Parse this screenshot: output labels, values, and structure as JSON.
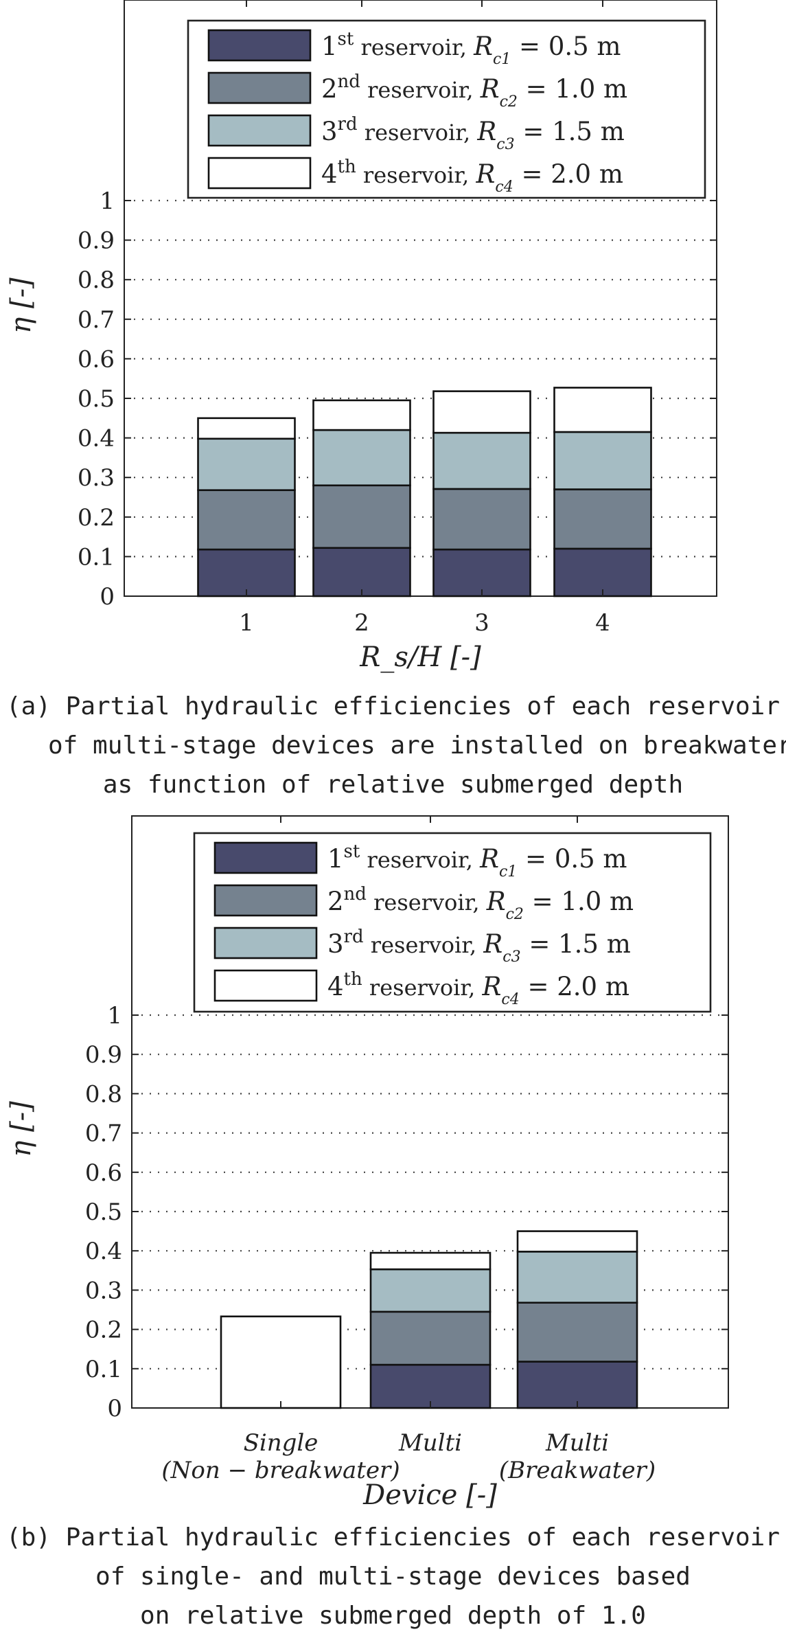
{
  "legend": [
    {
      "ordinal": "1",
      "sup": "st",
      "text": " reservoir, ",
      "sym": "R",
      "sub": "c1",
      "value": " = 0.5 m",
      "color": "#484a6c"
    },
    {
      "ordinal": "2",
      "sup": "nd",
      "text": " reservoir, ",
      "sym": "R",
      "sub": "c2",
      "value": " = 1.0 m",
      "color": "#75828f"
    },
    {
      "ordinal": "3",
      "sup": "rd",
      "text": " reservoir, ",
      "sym": "R",
      "sub": "c3",
      "value": " = 1.5 m",
      "color": "#a5bcc3"
    },
    {
      "ordinal": "4",
      "sup": "th",
      "text": " reservoir, ",
      "sym": "R",
      "sub": "c4",
      "value": " = 2.0 m",
      "color": "#ffffff"
    }
  ],
  "chart_data": [
    {
      "type": "bar",
      "stacked": true,
      "ylabel": "η [-]",
      "xlabel": "R_s/H [-]",
      "ylim": [
        0,
        1
      ],
      "yticks": [
        "0",
        "0.1",
        "0.2",
        "0.3",
        "0.4",
        "0.5",
        "0.6",
        "0.7",
        "0.8",
        "0.9",
        "1"
      ],
      "grid": true,
      "legend_position": "top",
      "categories": [
        "1",
        "2",
        "3",
        "4"
      ],
      "series": [
        {
          "name": "1st reservoir, Rc1 = 0.5 m",
          "values": [
            0.118,
            0.122,
            0.118,
            0.12
          ]
        },
        {
          "name": "2nd reservoir, Rc2 = 1.0 m",
          "values": [
            0.15,
            0.158,
            0.153,
            0.15
          ]
        },
        {
          "name": "3rd reservoir, Rc3 = 1.5 m",
          "values": [
            0.13,
            0.14,
            0.142,
            0.145
          ]
        },
        {
          "name": "4th reservoir, Rc4 = 2.0 m",
          "values": [
            0.052,
            0.075,
            0.105,
            0.112
          ]
        }
      ]
    },
    {
      "type": "bar",
      "stacked": true,
      "ylabel": "η [-]",
      "xlabel": "Device [-]",
      "ylim": [
        0,
        1
      ],
      "yticks": [
        "0",
        "0.1",
        "0.2",
        "0.3",
        "0.4",
        "0.5",
        "0.6",
        "0.7",
        "0.8",
        "0.9",
        "1"
      ],
      "grid": true,
      "legend_position": "top",
      "categories": [
        [
          "Single",
          "(Non − breakwater)"
        ],
        [
          "Multi",
          ""
        ],
        [
          "Multi",
          "(Breakwater)"
        ]
      ],
      "series": [
        {
          "name": "1st reservoir, Rc1 = 0.5 m",
          "values": [
            0,
            0.11,
            0.118
          ]
        },
        {
          "name": "2nd reservoir, Rc2 = 1.0 m",
          "values": [
            0,
            0.135,
            0.15
          ]
        },
        {
          "name": "3rd reservoir, Rc3 = 1.5 m",
          "values": [
            0,
            0.108,
            0.13
          ]
        },
        {
          "name": "4th reservoir, Rc4 = 2.0 m",
          "values": [
            0.233,
            0.042,
            0.052
          ]
        }
      ]
    }
  ],
  "captions": {
    "a": [
      "(a) Partial hydraulic efficiencies of each reservoir",
      "of multi-stage devices are installed on breakwater",
      "as function of relative submerged depth"
    ],
    "b": [
      "(b) Partial hydraulic efficiencies of each reservoir",
      "of single- and multi-stage devices based",
      "on relative submerged depth of 1.0"
    ]
  }
}
